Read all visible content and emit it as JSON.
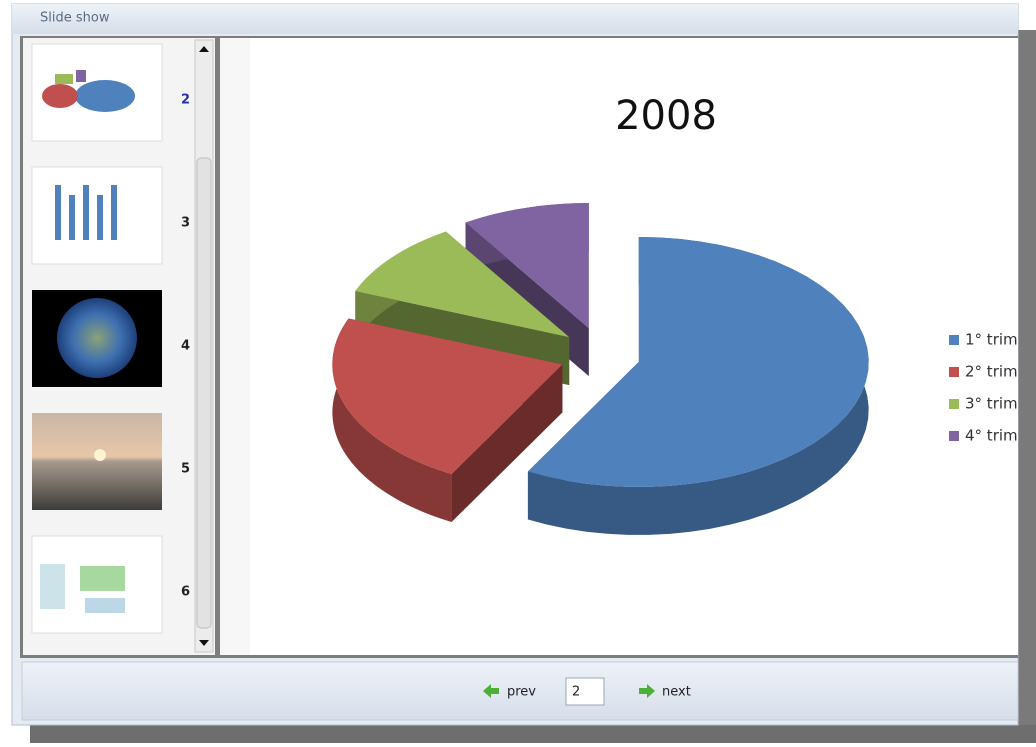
{
  "window": {
    "title": "Slide show"
  },
  "thumbnails": [
    {
      "number": 2
    },
    {
      "number": 3
    },
    {
      "number": 4
    },
    {
      "number": 5
    },
    {
      "number": 6
    }
  ],
  "slide": {
    "chart_data": {
      "type": "pie",
      "title": "2008",
      "categories": [
        "1° trim",
        "2° trim",
        "3° trim",
        "4° trim"
      ],
      "values": [
        58,
        23,
        10,
        9
      ],
      "colors": [
        "#4f81bd",
        "#c0504d",
        "#9bbb59",
        "#8064a2"
      ]
    }
  },
  "navigation": {
    "prev": "prev",
    "page": 2,
    "next": "next"
  }
}
